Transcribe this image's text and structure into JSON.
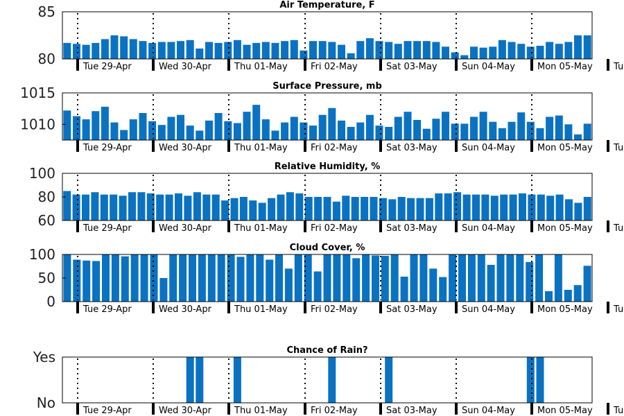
{
  "colors": {
    "bar": "#0b72c2",
    "axis": "#000000",
    "day_tick": "#000000"
  },
  "chart_data": [
    {
      "type": "bar",
      "title": "Air Temperature, F",
      "ylim": [
        80,
        85
      ],
      "yticks": [
        "80",
        "85"
      ],
      "xticks": [
        "Tue 29-Apr",
        "Wed 30-Apr",
        "Thu 01-May",
        "Fri 02-May",
        "Sat 03-May",
        "Sun 04-May",
        "Mon 05-May",
        "Tu"
      ],
      "values": [
        81.7,
        81.6,
        81.5,
        81.7,
        82.1,
        82.5,
        82.4,
        82.1,
        81.9,
        81.7,
        81.8,
        81.8,
        81.9,
        82.0,
        81.1,
        81.8,
        81.7,
        81.8,
        82.0,
        81.5,
        81.7,
        81.8,
        81.7,
        81.9,
        82.0,
        80.9,
        81.9,
        81.9,
        81.8,
        81.5,
        80.6,
        81.9,
        82.2,
        81.9,
        81.8,
        81.6,
        81.9,
        81.9,
        81.9,
        81.8,
        81.3,
        80.7,
        80.4,
        81.3,
        81.2,
        81.3,
        82.0,
        81.8,
        81.6,
        81.3,
        81.4,
        81.8,
        81.6,
        81.8,
        82.5,
        82.5
      ]
    },
    {
      "type": "bar",
      "title": "Surface Pressure, mb",
      "ylim": [
        1007.5,
        1015
      ],
      "yticks": [
        "1010",
        "1015"
      ],
      "xticks": [
        "Tue 29-Apr",
        "Wed 30-Apr",
        "Thu 01-May",
        "Fri 02-May",
        "Sat 03-May",
        "Sun 04-May",
        "Mon 05-May",
        "Tu"
      ],
      "values": [
        1012.2,
        1011.3,
        1010.8,
        1012.1,
        1012.8,
        1010.3,
        1009.1,
        1010.8,
        1011.8,
        1010.5,
        1009.9,
        1011.2,
        1011.5,
        1009.8,
        1009.0,
        1010.6,
        1011.8,
        1010.5,
        1010.2,
        1012.0,
        1013.1,
        1010.8,
        1009.0,
        1010.3,
        1011.2,
        1010.3,
        1009.8,
        1011.5,
        1012.6,
        1010.6,
        1009.6,
        1010.3,
        1011.5,
        1009.8,
        1009.6,
        1011.2,
        1012.0,
        1010.7,
        1009.3,
        1010.9,
        1012.0,
        1010.1,
        1010.1,
        1011.2,
        1012.0,
        1010.4,
        1009.4,
        1010.4,
        1011.9,
        1010.4,
        1009.4,
        1011.2,
        1011.4,
        1010.0,
        1008.4,
        1010.1
      ]
    },
    {
      "type": "bar",
      "title": "Relative Humidity, %",
      "ylim": [
        60,
        100
      ],
      "yticks": [
        "60",
        "80",
        "100"
      ],
      "xticks": [
        "Tue 29-Apr",
        "Wed 30-Apr",
        "Thu 01-May",
        "Fri 02-May",
        "Sat 03-May",
        "Sun 04-May",
        "Mon 05-May",
        "Tu"
      ],
      "values": [
        85,
        82,
        82,
        84,
        82,
        82,
        81,
        84,
        84,
        83,
        82,
        82,
        83,
        81,
        84,
        82,
        82,
        77,
        79,
        80,
        77,
        75,
        79,
        82,
        84,
        83,
        80,
        80,
        80,
        76,
        81,
        80,
        80,
        80,
        79,
        78,
        80,
        79,
        79,
        79,
        83,
        83,
        84,
        82,
        82,
        82,
        81,
        82,
        82,
        83,
        82,
        82,
        81,
        82,
        78,
        75,
        80
      ]
    },
    {
      "type": "bar",
      "title": "Cloud Cover, %",
      "ylim": [
        0,
        100
      ],
      "yticks": [
        "0",
        "50",
        "100"
      ],
      "xticks": [
        "Tue 29-Apr",
        "Wed 30-Apr",
        "Thu 01-May",
        "Fri 02-May",
        "Sat 03-May",
        "Sun 04-May",
        "Mon 05-May",
        "Tu"
      ],
      "values": [
        100,
        89,
        87,
        86,
        100,
        100,
        96,
        100,
        100,
        100,
        50,
        100,
        100,
        100,
        100,
        100,
        100,
        100,
        95,
        100,
        100,
        89,
        100,
        70,
        100,
        100,
        64,
        100,
        100,
        100,
        92,
        100,
        98,
        97,
        100,
        53,
        100,
        100,
        70,
        52,
        100,
        100,
        100,
        100,
        78,
        100,
        100,
        100,
        84,
        100,
        22,
        100,
        25,
        35,
        76
      ]
    },
    {
      "type": "bar",
      "title": "Chance of Rain?",
      "ylim": [
        0,
        1
      ],
      "yticks": [
        "No",
        "Yes"
      ],
      "xticks": [
        "Tue 29-Apr",
        "Wed 30-Apr",
        "Thu 01-May",
        "Fri 02-May",
        "Sat 03-May",
        "Sun 04-May",
        "Mon 05-May",
        "Tu"
      ],
      "values": [
        0,
        0,
        0,
        0,
        0,
        0,
        0,
        0,
        0,
        0,
        0,
        0,
        0,
        1,
        1,
        0,
        0,
        0,
        1,
        0,
        0,
        0,
        0,
        0,
        0,
        0,
        0,
        0,
        1,
        0,
        0,
        0,
        0,
        0,
        1,
        0,
        0,
        0,
        0,
        0,
        0,
        0,
        0,
        0,
        0,
        0,
        0,
        0,
        0,
        1,
        1,
        0,
        0,
        0,
        0,
        0
      ]
    }
  ]
}
